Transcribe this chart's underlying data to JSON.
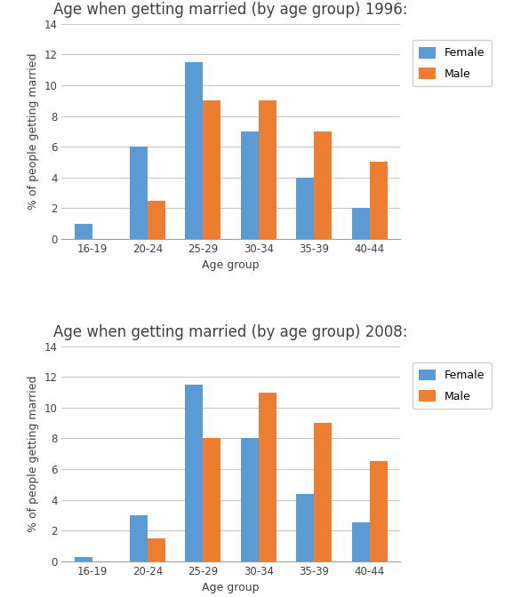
{
  "categories": [
    "16-19",
    "20-24",
    "25-29",
    "30-34",
    "35-39",
    "40-44"
  ],
  "chart1": {
    "title": "Age when getting married (by age group) 1996:",
    "female": [
      1.0,
      6.0,
      11.5,
      7.0,
      4.0,
      2.0
    ],
    "male": [
      0.0,
      2.5,
      9.0,
      9.0,
      7.0,
      5.0
    ]
  },
  "chart2": {
    "title": "Age when getting married (by age group) 2008:",
    "female": [
      0.25,
      3.0,
      11.5,
      8.0,
      4.4,
      2.5
    ],
    "male": [
      0.0,
      1.5,
      8.0,
      11.0,
      9.0,
      6.5
    ]
  },
  "xlabel": "Age group",
  "ylabel": "% of people getting married",
  "ylim": [
    0,
    14
  ],
  "yticks": [
    0,
    2,
    4,
    6,
    8,
    10,
    12,
    14
  ],
  "female_color": "#5B9BD5",
  "male_color": "#ED7D31",
  "bar_width": 0.32,
  "legend_labels": [
    "Female",
    "Male"
  ],
  "title_fontsize": 12,
  "axis_label_fontsize": 9,
  "tick_fontsize": 8.5,
  "legend_fontsize": 9,
  "background_color": "#ffffff",
  "grid_color": "#c8c8c8"
}
